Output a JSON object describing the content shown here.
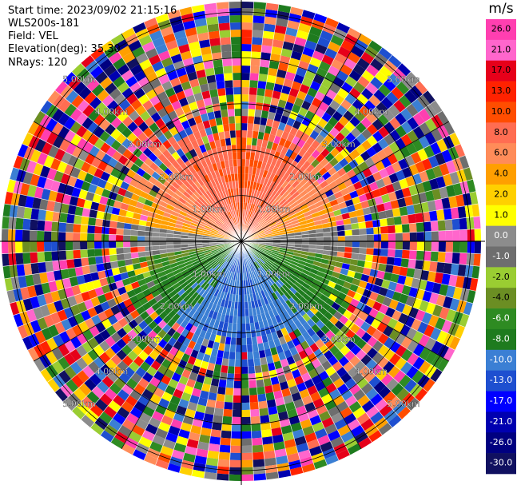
{
  "header": {
    "start_time": "Start time: 2023/09/02 21:15:16",
    "instrument": "WLS200s-181",
    "field": "Field: VEL",
    "elevation": "Elevation(deg): 35.30",
    "nrays": "NRays: 120"
  },
  "colorbar": {
    "units": "m/s",
    "ticks": [
      "26.0",
      "21.0",
      "17.0",
      "13.0",
      "10.0",
      "8.0",
      "6.0",
      "4.0",
      "2.0",
      "1.0",
      "0.0",
      "-1.0",
      "-2.0",
      "-4.0",
      "-6.0",
      "-8.0",
      "-10.0",
      "-13.0",
      "-17.0",
      "-21.0",
      "-26.0",
      "-30.0"
    ],
    "colors": [
      "#ff3fb0",
      "#ff66cc",
      "#e6001a",
      "#ff2200",
      "#ff4d00",
      "#ff6d52",
      "#ff8c59",
      "#ff9f00",
      "#ffd000",
      "#ffff00",
      "#8c8c8c",
      "#6e6e6e",
      "#9acd32",
      "#6b8e23",
      "#2e8b22",
      "#1e7b1e",
      "#3b7fd4",
      "#1e4fd0",
      "#0000ff",
      "#0000b0",
      "#000080",
      "#101060"
    ]
  },
  "chart_data": {
    "type": "ppi",
    "title": "",
    "field": "VEL",
    "units": "m/s",
    "elevation_deg": 35.3,
    "n_rays": 120,
    "range_rings_km": [
      1.0,
      2.0,
      3.0,
      4.0,
      5.0
    ],
    "ring_labels": [
      "1.00km",
      "2.00km",
      "3.00km",
      "4.00km",
      "5.00km"
    ],
    "color_scale": [
      -30,
      -26,
      -21,
      -17,
      -13,
      -10,
      -8,
      -6,
      -4,
      -2,
      -1,
      0,
      1,
      2,
      4,
      6,
      8,
      10,
      13,
      17,
      21,
      26
    ],
    "velocity_pattern": {
      "north_sector_min": 6,
      "north_sector_max": 10,
      "south_sector_min": -10,
      "south_sector_max": -4,
      "clean_range_km": 2.1,
      "noise_beyond_km": 2.6
    }
  }
}
